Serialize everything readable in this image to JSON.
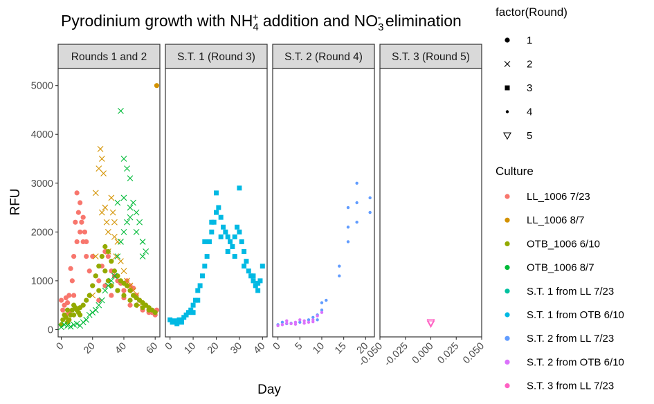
{
  "chart_data": {
    "type": "scatter",
    "title": {
      "parts": [
        {
          "t": "Pyrodinium growth with NH"
        },
        {
          "t": "4",
          "sub": true
        },
        {
          "t": "+",
          "sup": true
        },
        {
          "t": " addition and NO"
        },
        {
          "t": "3",
          "sub": true
        },
        {
          "t": "-",
          "sup": true
        },
        {
          "t": " elimination"
        }
      ]
    },
    "xlabel": "Day",
    "ylabel": "RFU",
    "y_range": [
      -150,
      5350
    ],
    "y_ticks": [
      0,
      1000,
      2000,
      3000,
      4000,
      5000
    ],
    "panels": [
      {
        "strip": "Rounds 1 and 2",
        "x_range": [
          -2,
          63
        ],
        "x_ticks": [
          0,
          20,
          40,
          60
        ]
      },
      {
        "strip": "S.T. 1 (Round 3)",
        "x_range": [
          -2,
          42
        ],
        "x_ticks": [
          0,
          10,
          20,
          30,
          40
        ]
      },
      {
        "strip": "S.T. 2 (Round 4)",
        "x_range": [
          -1.2,
          22
        ],
        "x_ticks": [
          0,
          5,
          10,
          15,
          20
        ]
      },
      {
        "strip": "S.T. 3 (Round 5)",
        "x_range": [
          -0.05,
          0.05
        ],
        "x_ticks": [
          -0.05,
          -0.025,
          0,
          0.025,
          0.05
        ],
        "x_tick_labels": [
          "-0.050",
          "-0.025",
          "0.000",
          "0.025",
          "0.050"
        ]
      }
    ],
    "legend_round": {
      "title": "factor(Round)",
      "entries": [
        {
          "label": "1",
          "shape": "filled-circle"
        },
        {
          "label": "2",
          "shape": "cross"
        },
        {
          "label": "3",
          "shape": "filled-square"
        },
        {
          "label": "4",
          "shape": "small-dot"
        },
        {
          "label": "5",
          "shape": "open-triangle-down"
        }
      ]
    },
    "legend_culture": {
      "title": "Culture",
      "entries": [
        {
          "label": "LL_1006 7/23",
          "color": "#F8766D"
        },
        {
          "label": "LL_1006 8/7",
          "color": "#D39200"
        },
        {
          "label": "OTB_1006 6/10",
          "color": "#93AA00"
        },
        {
          "label": "OTB_1006 8/7",
          "color": "#00BA38"
        },
        {
          "label": "S.T. 1 from LL 7/23",
          "color": "#00C19F"
        },
        {
          "label": "S.T. 1 from OTB 6/10",
          "color": "#00B9E3"
        },
        {
          "label": "S.T. 2 from LL 7/23",
          "color": "#619CFF"
        },
        {
          "label": "S.T. 2 from OTB 6/10",
          "color": "#DB72FB"
        },
        {
          "label": "S.T. 3 from LL 7/23",
          "color": "#FF61C3"
        }
      ]
    },
    "series": [
      {
        "panel": 0,
        "culture": "LL_1006 7/23",
        "round": "1",
        "points": [
          [
            0,
            600
          ],
          [
            1,
            400
          ],
          [
            2,
            500
          ],
          [
            3,
            650
          ],
          [
            4,
            550
          ],
          [
            5,
            700
          ],
          [
            6,
            1250
          ],
          [
            7,
            1000
          ],
          [
            8,
            1500
          ],
          [
            9,
            2200
          ],
          [
            10,
            2800
          ],
          [
            11,
            2400
          ],
          [
            12,
            2000
          ],
          [
            13,
            2200
          ],
          [
            14,
            1800
          ],
          [
            15,
            2000
          ],
          [
            16,
            1500
          ],
          [
            18,
            1200
          ],
          [
            20,
            900
          ],
          [
            22,
            1100
          ],
          [
            24,
            1000
          ],
          [
            26,
            1300
          ],
          [
            28,
            1600
          ],
          [
            30,
            1500
          ],
          [
            32,
            1200
          ],
          [
            34,
            1100
          ],
          [
            36,
            1000
          ],
          [
            38,
            950
          ],
          [
            40,
            800
          ],
          [
            42,
            1000
          ],
          [
            44,
            900
          ],
          [
            46,
            850
          ],
          [
            48,
            700
          ],
          [
            50,
            600
          ],
          [
            52,
            550
          ],
          [
            54,
            500
          ],
          [
            56,
            400
          ],
          [
            58,
            350
          ],
          [
            60,
            300
          ],
          [
            61,
            400
          ],
          [
            3,
            300
          ],
          [
            5,
            350
          ],
          [
            8,
            700
          ],
          [
            10,
            1800
          ],
          [
            12,
            2600
          ],
          [
            14,
            2300
          ],
          [
            16,
            1800
          ],
          [
            20,
            1500
          ],
          [
            24,
            600
          ],
          [
            28,
            900
          ],
          [
            32,
            700
          ],
          [
            36,
            800
          ],
          [
            40,
            650
          ],
          [
            44,
            500
          ],
          [
            48,
            650
          ],
          [
            52,
            400
          ],
          [
            56,
            350
          ]
        ]
      },
      {
        "panel": 0,
        "culture": "LL_1006 8/7",
        "round": "2",
        "points": [
          [
            20,
            700
          ],
          [
            22,
            1500
          ],
          [
            24,
            3300
          ],
          [
            25,
            3700
          ],
          [
            26,
            3500
          ],
          [
            27,
            3200
          ],
          [
            28,
            2500
          ],
          [
            29,
            2200
          ],
          [
            30,
            2000
          ],
          [
            32,
            2700
          ],
          [
            33,
            2400
          ],
          [
            34,
            1900
          ],
          [
            35,
            1500
          ],
          [
            36,
            1800
          ],
          [
            38,
            1400
          ],
          [
            40,
            1200
          ],
          [
            42,
            1000
          ],
          [
            44,
            900
          ],
          [
            46,
            800
          ],
          [
            48,
            700
          ],
          [
            50,
            500
          ],
          [
            22,
            2800
          ],
          [
            26,
            2400
          ],
          [
            30,
            1600
          ],
          [
            34,
            2200
          ]
        ]
      },
      {
        "panel": 0,
        "culture": "LL_1006 8/7",
        "round": "1",
        "points": [
          [
            61,
            5000
          ]
        ]
      },
      {
        "panel": 0,
        "culture": "OTB_1006 6/10",
        "round": "1",
        "points": [
          [
            0,
            100
          ],
          [
            1,
            200
          ],
          [
            2,
            300
          ],
          [
            3,
            250
          ],
          [
            4,
            150
          ],
          [
            5,
            200
          ],
          [
            6,
            300
          ],
          [
            7,
            400
          ],
          [
            8,
            500
          ],
          [
            9,
            450
          ],
          [
            10,
            400
          ],
          [
            11,
            350
          ],
          [
            12,
            300
          ],
          [
            14,
            500
          ],
          [
            16,
            600
          ],
          [
            18,
            700
          ],
          [
            20,
            900
          ],
          [
            22,
            1100
          ],
          [
            24,
            1300
          ],
          [
            26,
            1500
          ],
          [
            28,
            1700
          ],
          [
            30,
            1600
          ],
          [
            32,
            1400
          ],
          [
            34,
            1200
          ],
          [
            36,
            1100
          ],
          [
            38,
            1000
          ],
          [
            40,
            950
          ],
          [
            42,
            900
          ],
          [
            44,
            800
          ],
          [
            46,
            700
          ],
          [
            48,
            650
          ],
          [
            50,
            600
          ],
          [
            52,
            550
          ],
          [
            54,
            500
          ],
          [
            56,
            450
          ],
          [
            58,
            400
          ],
          [
            60,
            350
          ],
          [
            24,
            800
          ],
          [
            28,
            1200
          ],
          [
            30,
            1000
          ],
          [
            32,
            900
          ],
          [
            36,
            800
          ],
          [
            40,
            700
          ],
          [
            44,
            600
          ],
          [
            48,
            500
          ],
          [
            52,
            450
          ],
          [
            56,
            400
          ],
          [
            4,
            400
          ],
          [
            8,
            300
          ],
          [
            12,
            450
          ]
        ]
      },
      {
        "panel": 0,
        "culture": "OTB_1006 8/7",
        "round": "2",
        "points": [
          [
            0,
            50
          ],
          [
            2,
            100
          ],
          [
            4,
            80
          ],
          [
            6,
            60
          ],
          [
            8,
            100
          ],
          [
            10,
            120
          ],
          [
            12,
            80
          ],
          [
            14,
            150
          ],
          [
            16,
            200
          ],
          [
            18,
            300
          ],
          [
            20,
            350
          ],
          [
            22,
            400
          ],
          [
            24,
            500
          ],
          [
            26,
            600
          ],
          [
            28,
            800
          ],
          [
            30,
            900
          ],
          [
            32,
            1000
          ],
          [
            34,
            1100
          ],
          [
            36,
            1500
          ],
          [
            38,
            1800
          ],
          [
            40,
            2000
          ],
          [
            42,
            2200
          ],
          [
            44,
            2500
          ],
          [
            46,
            2600
          ],
          [
            48,
            2400
          ],
          [
            50,
            2200
          ],
          [
            52,
            1800
          ],
          [
            54,
            1600
          ],
          [
            38,
            4480
          ],
          [
            40,
            3500
          ],
          [
            42,
            3300
          ],
          [
            44,
            3100
          ],
          [
            36,
            2600
          ],
          [
            40,
            2700
          ],
          [
            44,
            2300
          ],
          [
            48,
            2000
          ],
          [
            52,
            1500
          ]
        ]
      },
      {
        "panel": 1,
        "culture": "S.T. 1 from OTB 6/10",
        "round": "3",
        "points": [
          [
            0,
            200
          ],
          [
            1,
            150
          ],
          [
            2,
            180
          ],
          [
            3,
            120
          ],
          [
            4,
            200
          ],
          [
            5,
            170
          ],
          [
            6,
            250
          ],
          [
            7,
            300
          ],
          [
            8,
            350
          ],
          [
            9,
            400
          ],
          [
            10,
            500
          ],
          [
            11,
            600
          ],
          [
            12,
            800
          ],
          [
            13,
            900
          ],
          [
            14,
            1100
          ],
          [
            15,
            1300
          ],
          [
            16,
            1500
          ],
          [
            17,
            1800
          ],
          [
            18,
            2000
          ],
          [
            19,
            2200
          ],
          [
            20,
            2400
          ],
          [
            21,
            2500
          ],
          [
            22,
            2300
          ],
          [
            23,
            2100
          ],
          [
            24,
            2000
          ],
          [
            25,
            1900
          ],
          [
            26,
            1800
          ],
          [
            27,
            1700
          ],
          [
            28,
            1900
          ],
          [
            29,
            2100
          ],
          [
            30,
            2000
          ],
          [
            31,
            1800
          ],
          [
            32,
            1600
          ],
          [
            33,
            1400
          ],
          [
            34,
            1200
          ],
          [
            35,
            1100
          ],
          [
            36,
            1000
          ],
          [
            37,
            900
          ],
          [
            38,
            950
          ],
          [
            39,
            1000
          ],
          [
            40,
            1300
          ],
          [
            20,
            2800
          ],
          [
            30,
            2900
          ],
          [
            15,
            1800
          ],
          [
            18,
            2200
          ],
          [
            22,
            1900
          ],
          [
            25,
            1600
          ],
          [
            28,
            1500
          ],
          [
            32,
            1300
          ],
          [
            36,
            1100
          ],
          [
            38,
            800
          ],
          [
            5,
            150
          ],
          [
            10,
            350
          ],
          [
            12,
            600
          ]
        ]
      },
      {
        "panel": 2,
        "culture": "S.T. 2 from LL 7/23",
        "round": "4",
        "points": [
          [
            0,
            100
          ],
          [
            1,
            150
          ],
          [
            2,
            120
          ],
          [
            3,
            130
          ],
          [
            5,
            150
          ],
          [
            7,
            200
          ],
          [
            8,
            250
          ],
          [
            9,
            300
          ],
          [
            10,
            550
          ],
          [
            11,
            600
          ],
          [
            14,
            1100
          ],
          [
            14,
            1300
          ],
          [
            16,
            1800
          ],
          [
            16,
            2100
          ],
          [
            16,
            2500
          ],
          [
            18,
            2200
          ],
          [
            18,
            2600
          ],
          [
            18,
            3000
          ],
          [
            21,
            2400
          ],
          [
            21,
            2700
          ],
          [
            9,
            200
          ],
          [
            10,
            400
          ]
        ]
      },
      {
        "panel": 2,
        "culture": "S.T. 2 from OTB 6/10",
        "round": "4",
        "points": [
          [
            0,
            80
          ],
          [
            1,
            100
          ],
          [
            2,
            180
          ],
          [
            3,
            120
          ],
          [
            4,
            150
          ],
          [
            5,
            200
          ],
          [
            6,
            180
          ],
          [
            7,
            150
          ],
          [
            8,
            200
          ],
          [
            9,
            280
          ],
          [
            10,
            350
          ],
          [
            2,
            130
          ],
          [
            4,
            110
          ],
          [
            6,
            130
          ],
          [
            8,
            160
          ]
        ]
      },
      {
        "panel": 3,
        "culture": "S.T. 3 from LL 7/23",
        "round": "5",
        "points": [
          [
            0,
            150
          ],
          [
            0,
            120
          ]
        ]
      }
    ]
  }
}
